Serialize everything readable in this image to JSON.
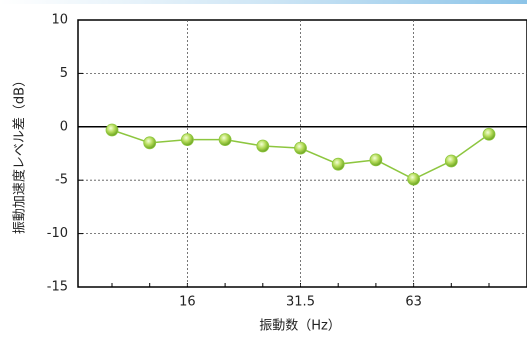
{
  "chart_data": {
    "type": "line",
    "y_label": "振動加速度レベル差（dB）",
    "x_label": "振動数（Hz）",
    "categories": [
      null,
      null,
      "16",
      null,
      null,
      "31.5",
      null,
      null,
      "63",
      null,
      null
    ],
    "series": [
      {
        "name": null,
        "color": "#8dc63f",
        "values": [
          -0.3,
          -1.5,
          -1.2,
          -1.2,
          -1.8,
          -2.0,
          -3.5,
          -3.1,
          -4.9,
          -3.2,
          -0.7
        ]
      }
    ],
    "ylim": [
      -15,
      10
    ],
    "yticks": [
      -15,
      -10,
      -5,
      0,
      5,
      10
    ],
    "grid": true
  }
}
